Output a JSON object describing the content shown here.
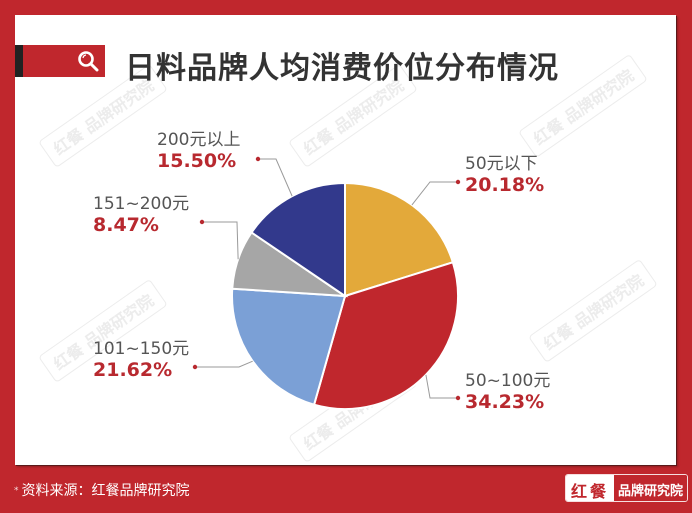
{
  "header": {
    "title": "日料品牌人均消费价位分布情况",
    "icon": "search-icon",
    "accent_color": "#c0272d"
  },
  "watermark": {
    "text": "红餐 品牌研究院"
  },
  "chart_data": {
    "type": "pie",
    "title": "日料品牌人均消费价位分布情况",
    "start_angle_deg": 0,
    "direction": "clockwise",
    "categories": [
      "50元以下",
      "50~100元",
      "101~150元",
      "151~200元",
      "200元以上"
    ],
    "values": [
      20.18,
      34.23,
      21.62,
      8.47,
      15.5
    ],
    "value_labels": [
      "20.18%",
      "34.23%",
      "21.62%",
      "8.47%",
      "15.50%"
    ],
    "colors": [
      "#e3a93a",
      "#c0272d",
      "#7ba0d6",
      "#a6a6a6",
      "#32398c"
    ],
    "unit": "%",
    "legend": "none (direct labels with leader lines)"
  },
  "labels": [
    {
      "category": "50元以下",
      "percent": "20.18%"
    },
    {
      "category": "50~100元",
      "percent": "34.23%"
    },
    {
      "category": "101~150元",
      "percent": "21.62%"
    },
    {
      "category": "151~200元",
      "percent": "8.47%"
    },
    {
      "category": "200元以上",
      "percent": "15.50%"
    }
  ],
  "footer": {
    "source_prefix": "*",
    "source_text": "资料来源：红餐品牌研究院",
    "brand_left": "红餐",
    "brand_right": "品牌研究院"
  }
}
